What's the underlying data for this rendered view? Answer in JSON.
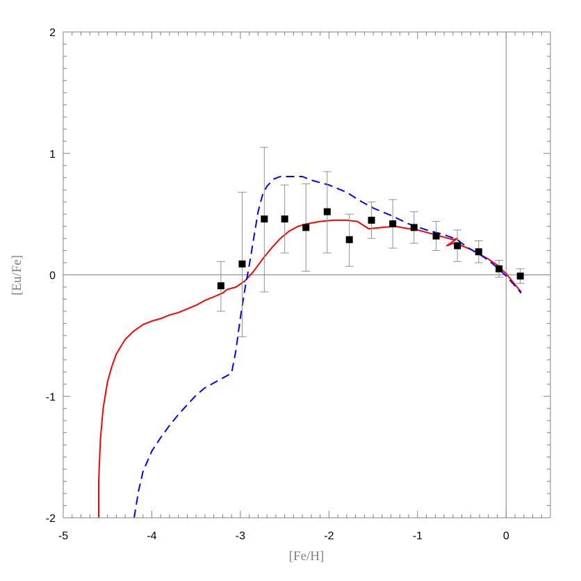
{
  "chart_data": {
    "type": "line",
    "title": "",
    "xlabel": "[Fe/H]",
    "ylabel": "[Eu/Fe]",
    "xlim": [
      -5,
      0.5
    ],
    "ylim": [
      -2,
      2
    ],
    "x_ticks": [
      -5,
      -4,
      -3,
      -2,
      -1,
      0
    ],
    "y_ticks": [
      -2,
      -1,
      0,
      1,
      2
    ],
    "reference_lines": {
      "x": 0,
      "y": 0
    },
    "grid": false,
    "legend": "none",
    "series": [
      {
        "style": "solid",
        "color": "#ff0000",
        "points": [
          [
            -4.6,
            -2.0
          ],
          [
            -4.6,
            -1.7
          ],
          [
            -4.58,
            -1.35
          ],
          [
            -4.55,
            -1.1
          ],
          [
            -4.5,
            -0.88
          ],
          [
            -4.45,
            -0.75
          ],
          [
            -4.4,
            -0.65
          ],
          [
            -4.3,
            -0.53
          ],
          [
            -4.2,
            -0.46
          ],
          [
            -4.1,
            -0.41
          ],
          [
            -4.0,
            -0.38
          ],
          [
            -3.9,
            -0.36
          ],
          [
            -3.8,
            -0.33
          ],
          [
            -3.7,
            -0.31
          ],
          [
            -3.6,
            -0.28
          ],
          [
            -3.5,
            -0.25
          ],
          [
            -3.4,
            -0.21
          ],
          [
            -3.3,
            -0.18
          ],
          [
            -3.2,
            -0.15
          ],
          [
            -3.15,
            -0.12
          ],
          [
            -3.05,
            -0.1
          ],
          [
            -2.95,
            -0.05
          ],
          [
            -2.85,
            0.03
          ],
          [
            -2.75,
            0.13
          ],
          [
            -2.65,
            0.22
          ],
          [
            -2.55,
            0.3
          ],
          [
            -2.45,
            0.36
          ],
          [
            -2.35,
            0.4
          ],
          [
            -2.25,
            0.42
          ],
          [
            -2.1,
            0.44
          ],
          [
            -1.95,
            0.45
          ],
          [
            -1.8,
            0.45
          ],
          [
            -1.68,
            0.44
          ],
          [
            -1.55,
            0.38
          ],
          [
            -1.4,
            0.39
          ],
          [
            -1.25,
            0.4
          ],
          [
            -1.1,
            0.38
          ],
          [
            -1.0,
            0.37
          ],
          [
            -0.9,
            0.35
          ],
          [
            -0.8,
            0.33
          ],
          [
            -0.7,
            0.31
          ],
          [
            -0.6,
            0.29
          ],
          [
            -0.55,
            0.3
          ],
          [
            -0.67,
            0.24
          ],
          [
            -0.6,
            0.26
          ],
          [
            -0.5,
            0.24
          ],
          [
            -0.4,
            0.21
          ],
          [
            -0.3,
            0.17
          ],
          [
            -0.2,
            0.13
          ],
          [
            -0.1,
            0.08
          ],
          [
            0.0,
            0.01
          ],
          [
            0.1,
            -0.08
          ],
          [
            0.17,
            -0.14
          ]
        ]
      },
      {
        "style": "dashed",
        "color": "#0000ff",
        "points": [
          [
            -4.2,
            -2.0
          ],
          [
            -4.15,
            -1.78
          ],
          [
            -4.1,
            -1.62
          ],
          [
            -4.0,
            -1.45
          ],
          [
            -3.9,
            -1.34
          ],
          [
            -3.8,
            -1.24
          ],
          [
            -3.7,
            -1.15
          ],
          [
            -3.6,
            -1.07
          ],
          [
            -3.5,
            -0.99
          ],
          [
            -3.4,
            -0.93
          ],
          [
            -3.3,
            -0.89
          ],
          [
            -3.2,
            -0.85
          ],
          [
            -3.1,
            -0.81
          ],
          [
            -3.05,
            -0.62
          ],
          [
            -3.0,
            -0.35
          ],
          [
            -2.95,
            -0.12
          ],
          [
            -2.9,
            0.08
          ],
          [
            -2.85,
            0.3
          ],
          [
            -2.8,
            0.52
          ],
          [
            -2.75,
            0.66
          ],
          [
            -2.7,
            0.73
          ],
          [
            -2.62,
            0.79
          ],
          [
            -2.55,
            0.81
          ],
          [
            -2.45,
            0.81
          ],
          [
            -2.3,
            0.81
          ],
          [
            -2.2,
            0.78
          ],
          [
            -2.0,
            0.74
          ],
          [
            -1.8,
            0.68
          ],
          [
            -1.65,
            0.61
          ],
          [
            -1.5,
            0.55
          ],
          [
            -1.3,
            0.49
          ],
          [
            -1.1,
            0.42
          ],
          [
            -0.9,
            0.37
          ],
          [
            -0.7,
            0.33
          ],
          [
            -0.55,
            0.29
          ],
          [
            -0.5,
            0.26
          ],
          [
            -0.4,
            0.21
          ],
          [
            -0.3,
            0.17
          ],
          [
            -0.2,
            0.12
          ],
          [
            -0.1,
            0.06
          ],
          [
            0.0,
            -0.01
          ],
          [
            0.1,
            -0.09
          ],
          [
            0.17,
            -0.15
          ]
        ]
      }
    ],
    "observations": [
      {
        "x": -3.22,
        "y": -0.09,
        "err_low": 0.21,
        "err_high": 0.2
      },
      {
        "x": -2.98,
        "y": 0.09,
        "err_low": 0.6,
        "err_high": 0.59
      },
      {
        "x": -2.73,
        "y": 0.46,
        "err_low": 0.6,
        "err_high": 0.59
      },
      {
        "x": -2.5,
        "y": 0.46,
        "err_low": 0.28,
        "err_high": 0.28
      },
      {
        "x": -2.26,
        "y": 0.39,
        "err_low": 0.36,
        "err_high": 0.36
      },
      {
        "x": -2.02,
        "y": 0.52,
        "err_low": 0.34,
        "err_high": 0.33
      },
      {
        "x": -1.77,
        "y": 0.29,
        "err_low": 0.22,
        "err_high": 0.21
      },
      {
        "x": -1.52,
        "y": 0.45,
        "err_low": 0.15,
        "err_high": 0.15
      },
      {
        "x": -1.28,
        "y": 0.42,
        "err_low": 0.2,
        "err_high": 0.2
      },
      {
        "x": -1.04,
        "y": 0.39,
        "err_low": 0.13,
        "err_high": 0.13
      },
      {
        "x": -0.79,
        "y": 0.32,
        "err_low": 0.12,
        "err_high": 0.12
      },
      {
        "x": -0.55,
        "y": 0.24,
        "err_low": 0.13,
        "err_high": 0.13
      },
      {
        "x": -0.31,
        "y": 0.19,
        "err_low": 0.09,
        "err_high": 0.09
      },
      {
        "x": -0.08,
        "y": 0.05,
        "err_low": 0.07,
        "err_high": 0.07
      },
      {
        "x": 0.16,
        "y": -0.01,
        "err_low": 0.06,
        "err_high": 0.06
      }
    ]
  }
}
